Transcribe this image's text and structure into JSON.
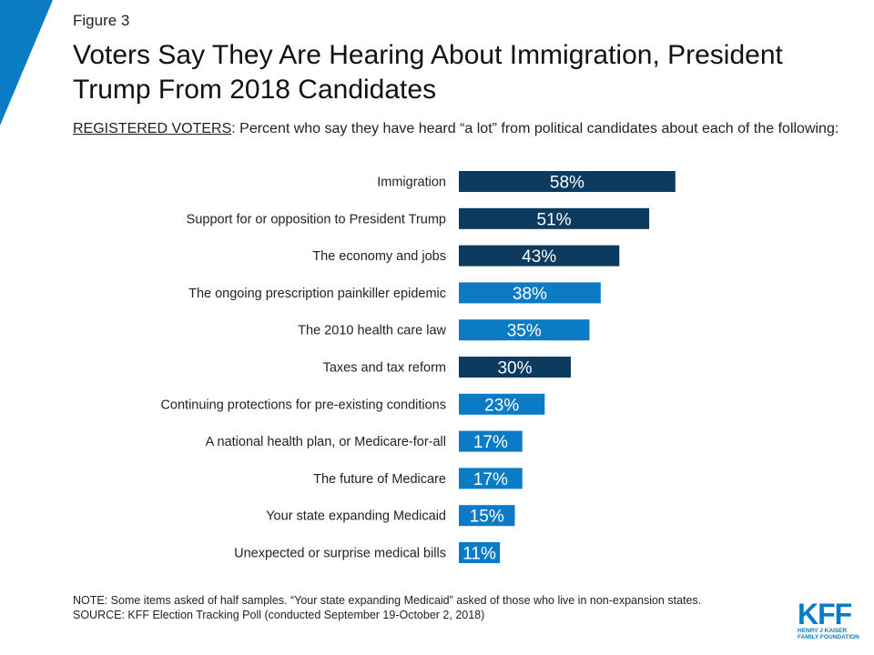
{
  "figure_label": "Figure 3",
  "subtitle": {
    "underlined": "REGISTERED VOTERS",
    "rest": ": Percent who say they have heard “a lot” from political candidates about each of the following:"
  },
  "note": "NOTE: Some items asked of half samples. “Your state expanding Medicaid” asked of those who live in non-expansion states.",
  "source": "SOURCE: KFF Election Tracking Poll (conducted September 19-October 2, 2018)",
  "logo": {
    "text": "KFF",
    "line1": "HENRY J KAISER",
    "line2": "FAMILY FOUNDATION"
  },
  "colors": {
    "dark": "#0d3a5f",
    "light": "#0b7bc6",
    "accent": "#0b7bc6"
  },
  "chart_data": {
    "type": "bar",
    "orientation": "horizontal",
    "title": "Voters Say They Are Hearing About Immigration, President Trump From 2018 Candidates",
    "categories": [
      "Immigration",
      "Support for or opposition to President Trump",
      "The economy and jobs",
      "The ongoing prescription painkiller epidemic",
      "The 2010 health care law",
      "Taxes and tax reform",
      "Continuing protections for pre-existing conditions",
      "A national health plan, or Medicare-for-all",
      "The future of Medicare",
      "Your state expanding Medicaid",
      "Unexpected or surprise medical bills"
    ],
    "values": [
      58,
      51,
      43,
      38,
      35,
      30,
      23,
      17,
      17,
      15,
      11
    ],
    "value_labels": [
      "58%",
      "51%",
      "43%",
      "38%",
      "35%",
      "30%",
      "23%",
      "17%",
      "17%",
      "15%",
      "11%"
    ],
    "bar_colors": [
      "dark",
      "dark",
      "dark",
      "light",
      "light",
      "dark",
      "light",
      "light",
      "light",
      "light",
      "light"
    ],
    "xlim": [
      0,
      100
    ],
    "grid": false,
    "legend": "none"
  }
}
